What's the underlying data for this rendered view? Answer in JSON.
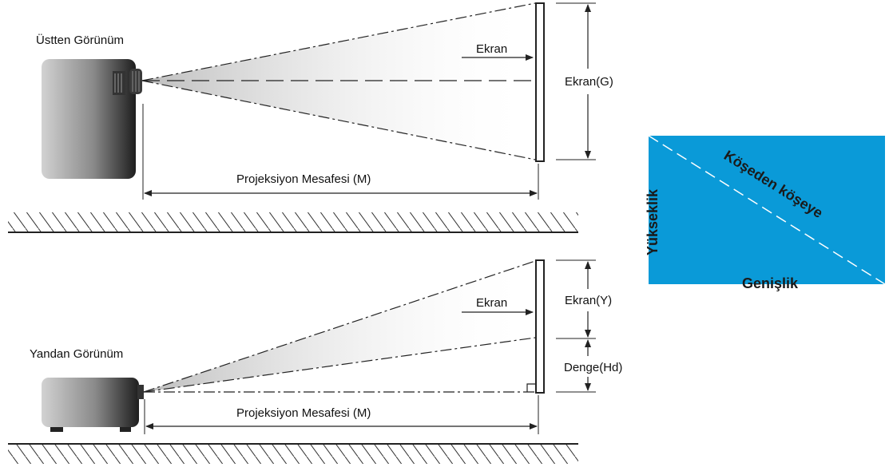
{
  "top_view": {
    "title": "Üstten Görünüm",
    "screen_label": "Ekran",
    "screen_height_label": "Ekran(G)",
    "distance_label": "Projeksiyon Mesafesi (M)"
  },
  "side_view": {
    "title": "Yandan Görünüm",
    "screen_label": "Ekran",
    "screen_height_label": "Ekran(Y)",
    "offset_label": "Denge(Hd)",
    "distance_label": "Projeksiyon Mesafesi (M)"
  },
  "screen_diagram": {
    "diagonal_label": "Köşeden köşeye",
    "width_label": "Genişlik",
    "height_label": "Yükseklik",
    "fill_color": "#0a9ad8"
  },
  "colors": {
    "line": "#222222",
    "projector_dark": "#2a2a2a",
    "screen_blue": "#0a9ad8"
  }
}
